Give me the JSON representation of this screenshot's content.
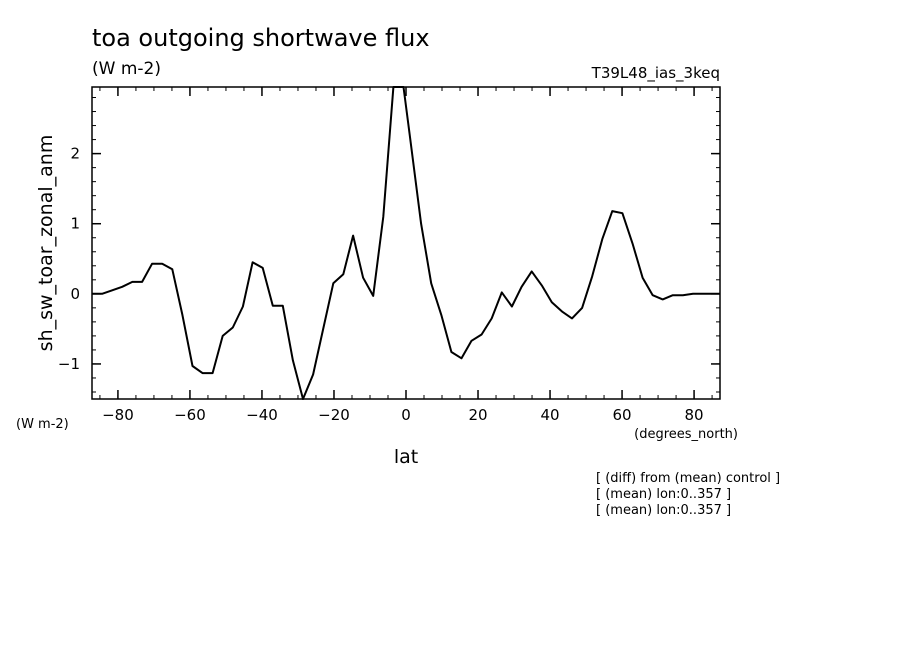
{
  "chart_data": {
    "type": "line",
    "title": "toa outgoing shortwave flux",
    "units": "(W m-2)",
    "run_id": "T39L48_ias_3keq",
    "ylabel": "sh_sw_toar_zonal_anm",
    "ylabel_units": "(W m-2)",
    "xlabel": "lat",
    "xlabel_units": "(degrees_north)",
    "notes": [
      "[ (diff) from (mean) control ]",
      "[ (mean) lon:0..357 ]",
      "[ (mean) lon:0..357 ]"
    ],
    "xlim": [
      -87.2,
      87.2
    ],
    "ylim": [
      -1.5,
      2.95
    ],
    "x_ticks": [
      -80,
      -60,
      -40,
      -20,
      0,
      20,
      40,
      60,
      80
    ],
    "x_tick_labels": [
      "−80",
      "−60",
      "−40",
      "−20",
      "0",
      "20",
      "40",
      "60",
      "80"
    ],
    "y_ticks": [
      -1,
      0,
      1,
      2
    ],
    "y_tick_labels": [
      "−1",
      "0",
      "1",
      "2"
    ],
    "grid": false,
    "series": [
      {
        "x": [
          -87.2,
          -84.4,
          -81.6,
          -78.8,
          -76.0,
          -73.3,
          -70.5,
          -67.7,
          -64.9,
          -62.1,
          -59.3,
          -56.5,
          -53.7,
          -50.9,
          -48.1,
          -45.3,
          -42.6,
          -39.8,
          -37.0,
          -34.2,
          -31.4,
          -28.6,
          -25.8,
          -23.0,
          -20.2,
          -17.4,
          -14.7,
          -11.9,
          -9.1,
          -6.3,
          -3.5,
          -0.7,
          1.0,
          4.2,
          7.0,
          9.8,
          12.6,
          15.4,
          18.2,
          21.0,
          23.8,
          26.6,
          29.4,
          32.1,
          34.9,
          37.7,
          40.5,
          43.3,
          46.1,
          48.9,
          51.7,
          54.5,
          57.3,
          60.1,
          62.9,
          65.7,
          68.5,
          71.3,
          74.1,
          76.9,
          79.7,
          82.5,
          85.3,
          87.2
        ],
        "y": [
          0.0,
          0.0,
          0.05,
          0.1,
          0.17,
          0.17,
          0.43,
          0.43,
          0.35,
          -0.3,
          -1.03,
          -1.13,
          -1.13,
          -0.6,
          -0.48,
          -0.18,
          0.45,
          0.37,
          -0.17,
          -0.17,
          -0.95,
          -1.5,
          -1.15,
          -0.5,
          0.15,
          0.28,
          0.83,
          0.23,
          -0.03,
          1.1,
          3.0,
          2.95,
          2.28,
          1.0,
          0.15,
          -0.3,
          -0.83,
          -0.92,
          -0.67,
          -0.58,
          -0.35,
          0.02,
          -0.18,
          0.1,
          0.32,
          0.12,
          -0.12,
          -0.25,
          -0.35,
          -0.2,
          0.25,
          0.78,
          1.18,
          1.15,
          0.72,
          0.23,
          -0.02,
          -0.08,
          -0.02,
          -0.02,
          0.0,
          0.0,
          0.0,
          0.0
        ]
      }
    ]
  }
}
